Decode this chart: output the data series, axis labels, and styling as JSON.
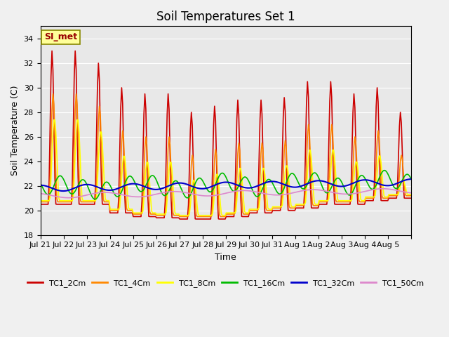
{
  "title": "Soil Temperatures Set 1",
  "xlabel": "Time",
  "ylabel": "Soil Temperature (C)",
  "ylim": [
    18,
    35
  ],
  "yticks": [
    18,
    20,
    22,
    24,
    26,
    28,
    30,
    32,
    34
  ],
  "background_color": "#e8e8e8",
  "annotation_text": "SI_met",
  "annotation_bg": "#ffff99",
  "annotation_border": "#888800",
  "series": {
    "TC1_2Cm": {
      "color": "#cc0000",
      "linewidth": 1.2
    },
    "TC1_4Cm": {
      "color": "#ff8800",
      "linewidth": 1.2
    },
    "TC1_8Cm": {
      "color": "#ffff00",
      "linewidth": 1.2
    },
    "TC1_16Cm": {
      "color": "#00bb00",
      "linewidth": 1.2
    },
    "TC1_32Cm": {
      "color": "#0000cc",
      "linewidth": 1.5
    },
    "TC1_50Cm": {
      "color": "#dd88cc",
      "linewidth": 1.2
    }
  },
  "xtick_labels": [
    "Jul 21",
    "Jul 22",
    "Jul 23",
    "Jul 24",
    "Jul 25",
    "Jul 26",
    "Jul 27",
    "Jul 28",
    "Jul 29",
    "Jul 30",
    "Jul 31",
    "Aug 1",
    "Aug 2",
    "Aug 3",
    "Aug 4",
    "Aug 5"
  ],
  "n_days": 16,
  "pts_per_day": 24
}
